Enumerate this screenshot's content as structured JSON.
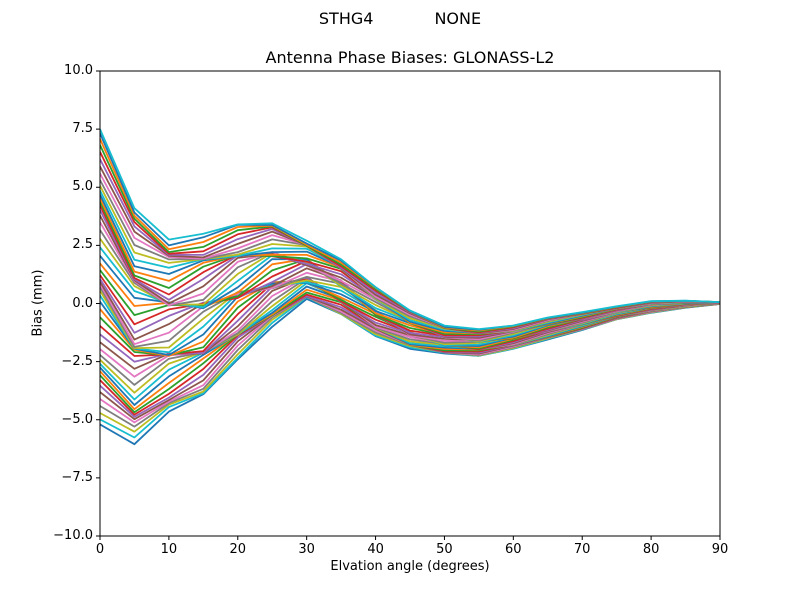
{
  "figure": {
    "background": "#ffffff",
    "suptitle": "STHG4            NONE",
    "title": "Antenna Phase Biases: GLONASS-L2"
  },
  "chart_data": {
    "type": "line",
    "suptitle": "STHG4            NONE",
    "title": "Antenna Phase Biases: GLONASS-L2",
    "xlabel": "Elvation angle (degrees)",
    "ylabel": "Bias (mm)",
    "xlim": [
      0,
      90
    ],
    "ylim": [
      -10.0,
      10.0
    ],
    "xticks": [
      0,
      10,
      20,
      30,
      40,
      50,
      60,
      70,
      80,
      90
    ],
    "xtick_labels": [
      "0",
      "10",
      "20",
      "30",
      "40",
      "50",
      "60",
      "70",
      "80",
      "90"
    ],
    "yticks": [
      10.0,
      7.5,
      5.0,
      2.5,
      0.0,
      -2.5,
      -5.0,
      -7.5,
      -10.0
    ],
    "ytick_labels": [
      "10.0",
      "7.5",
      "5.0",
      "2.5",
      "0.0",
      "−2.5",
      "−5.0",
      "−7.5",
      "−10.0"
    ],
    "grid": false,
    "legend": "none",
    "axis_color": "#000000",
    "text_color": "#000000",
    "line_width": 1.8,
    "x": [
      0,
      5,
      10,
      15,
      20,
      25,
      30,
      35,
      40,
      45,
      50,
      55,
      60,
      65,
      70,
      75,
      80,
      85,
      90
    ],
    "n_series": 52,
    "series_labels_visible": false,
    "envelope_top": [
      7.5,
      4.1,
      2.75,
      3.0,
      3.4,
      3.45,
      2.7,
      1.9,
      0.7,
      -0.3,
      -0.95,
      -1.1,
      -0.95,
      -0.6,
      -0.37,
      -0.12,
      0.1,
      0.12,
      0.06
    ],
    "envelope_bottom": [
      -5.2,
      -6.05,
      -4.65,
      -3.9,
      -2.4,
      -1.0,
      0.2,
      -0.45,
      -1.4,
      -1.95,
      -2.15,
      -2.25,
      -1.95,
      -1.55,
      -1.14,
      -0.68,
      -0.4,
      -0.18,
      -0.02
    ],
    "jitter_amplitude": [
      0.35,
      0.5,
      0.55,
      0.55,
      0.5,
      0.45,
      0.35,
      0.3,
      0.25,
      0.2,
      0.15,
      0.12,
      0.1,
      0.08,
      0.06,
      0.04,
      0.03,
      0.015,
      0.008
    ],
    "palette": [
      "#1f77b4",
      "#ff7f0e",
      "#2ca02c",
      "#d62728",
      "#9467bd",
      "#8c564b",
      "#e377c2",
      "#7f7f7f",
      "#bcbd22",
      "#17becf"
    ]
  }
}
